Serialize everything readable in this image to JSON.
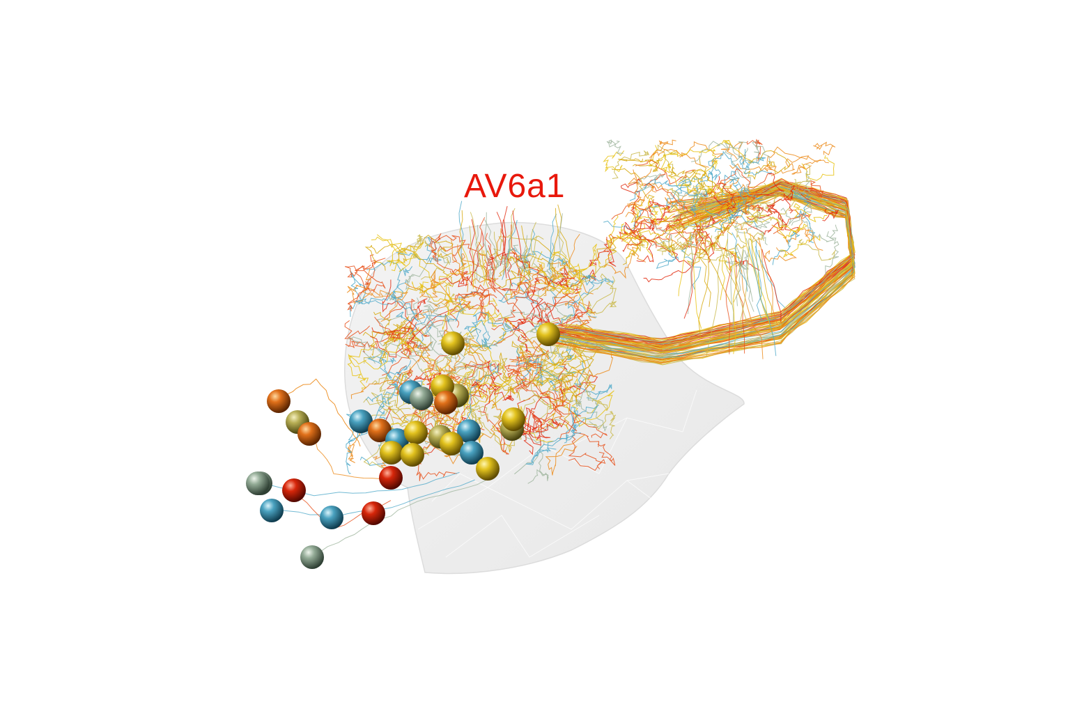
{
  "label": {
    "text": "AV6a1",
    "color": "#e8180c"
  },
  "colors": {
    "palette": [
      "#e8c20f",
      "#d6a80a",
      "#4fa9c9",
      "#e8501a",
      "#e2280c",
      "#ec8a18",
      "#9fb59e",
      "#c9b94a"
    ],
    "mesh": "#e6e6e6",
    "background": "#ffffff"
  },
  "soma_colors": [
    "gold",
    "teal",
    "orange",
    "red",
    "sage",
    "olive"
  ]
}
